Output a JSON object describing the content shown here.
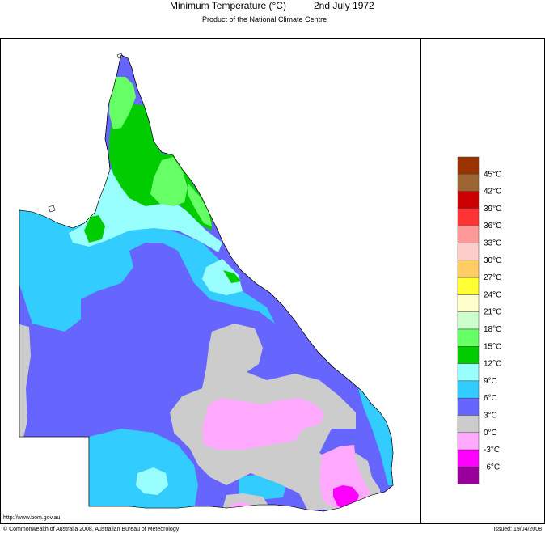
{
  "title": {
    "main": "Minimum Temperature (°C)",
    "date": "2nd July 1972",
    "subtitle": "Product of the National Climate Centre"
  },
  "legend": {
    "items": [
      {
        "label": "",
        "color": "#993300"
      },
      {
        "label": "45°C",
        "color": "#9c6633"
      },
      {
        "label": "42°C",
        "color": "#cc0000"
      },
      {
        "label": "39°C",
        "color": "#ff3333"
      },
      {
        "label": "36°C",
        "color": "#ff9999"
      },
      {
        "label": "33°C",
        "color": "#ffcccc"
      },
      {
        "label": "30°C",
        "color": "#ffcc66"
      },
      {
        "label": "27°C",
        "color": "#ffff33"
      },
      {
        "label": "24°C",
        "color": "#ffffcc"
      },
      {
        "label": "21°C",
        "color": "#ccffcc"
      },
      {
        "label": "18°C",
        "color": "#66ff66"
      },
      {
        "label": "15°C",
        "color": "#00cc00"
      },
      {
        "label": "12°C",
        "color": "#99ffff"
      },
      {
        "label": "9°C",
        "color": "#33ccff"
      },
      {
        "label": "6°C",
        "color": "#6666ff"
      },
      {
        "label": "3°C",
        "color": "#cccccc"
      },
      {
        "label": "0°C",
        "color": "#ffaaff"
      },
      {
        "label": "-3°C",
        "color": "#ff00ff"
      },
      {
        "label": "-6°C",
        "color": "#990099"
      }
    ]
  },
  "footer": {
    "url": "http://www.bom.gov.au",
    "copyright": "© Commonwealth of Australia 2008, Australian Bureau of Meteorology",
    "issued": "Issued: 19/04/2008"
  },
  "map_colors": {
    "band_3_6": "#6666ff",
    "band_6_9": "#33ccff",
    "band_9_12": "#99ffff",
    "band_12_15": "#00cc00",
    "band_15_18": "#66ff66",
    "band_0_3": "#cccccc",
    "band_m3_0": "#ffaaff",
    "band_m6_m3": "#ff00ff"
  }
}
